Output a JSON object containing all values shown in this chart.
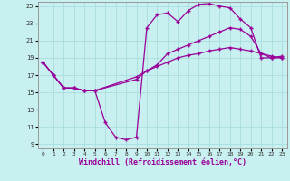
{
  "xlabel": "Windchill (Refroidissement éolien,°C)",
  "bg_color": "#c8f0f0",
  "line_color": "#990099",
  "grid_color": "#aadddd",
  "xlim": [
    -0.5,
    23.5
  ],
  "ylim": [
    8.5,
    25.5
  ],
  "yticks": [
    9,
    11,
    13,
    15,
    17,
    19,
    21,
    23,
    25
  ],
  "xticks": [
    0,
    1,
    2,
    3,
    4,
    5,
    6,
    7,
    8,
    9,
    10,
    11,
    12,
    13,
    14,
    15,
    16,
    17,
    18,
    19,
    20,
    21,
    22,
    23
  ],
  "line1_x": [
    0,
    1,
    2,
    3,
    4,
    5,
    6,
    7,
    8,
    9,
    10,
    11,
    12,
    13,
    14,
    15,
    16,
    17,
    18,
    19,
    20,
    21,
    22,
    23
  ],
  "line1_y": [
    18.5,
    17.0,
    15.5,
    15.5,
    15.2,
    15.2,
    11.5,
    9.8,
    9.5,
    9.8,
    22.5,
    24.0,
    24.2,
    23.2,
    24.5,
    25.2,
    25.3,
    25.0,
    24.8,
    23.5,
    22.5,
    19.0,
    19.0,
    19.0
  ],
  "line2_x": [
    0,
    1,
    2,
    3,
    4,
    5,
    9,
    10,
    11,
    12,
    13,
    14,
    15,
    16,
    17,
    18,
    19,
    20,
    21,
    22,
    23
  ],
  "line2_y": [
    18.5,
    17.0,
    15.5,
    15.5,
    15.2,
    15.2,
    16.5,
    17.5,
    18.2,
    19.5,
    20.0,
    20.5,
    21.0,
    21.5,
    22.0,
    22.5,
    22.3,
    21.5,
    19.5,
    19.0,
    19.2
  ],
  "line3_x": [
    0,
    1,
    2,
    3,
    4,
    5,
    9,
    10,
    11,
    12,
    13,
    14,
    15,
    16,
    17,
    18,
    19,
    20,
    21,
    22,
    23
  ],
  "line3_y": [
    18.5,
    17.0,
    15.5,
    15.5,
    15.2,
    15.2,
    16.8,
    17.5,
    18.0,
    18.5,
    19.0,
    19.3,
    19.5,
    19.8,
    20.0,
    20.2,
    20.0,
    19.8,
    19.5,
    19.2,
    19.0
  ]
}
